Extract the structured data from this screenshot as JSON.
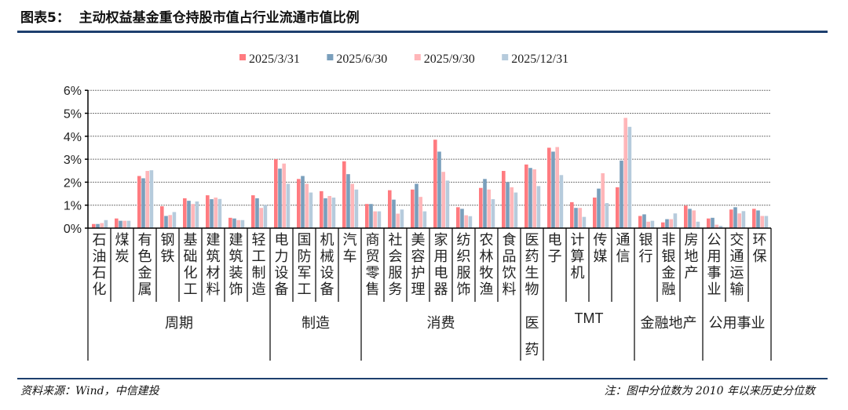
{
  "header": {
    "title": "图表5：  主动权益基金重仓持股市值占行业流通市值比例"
  },
  "footer": {
    "source": "资料来源：Wind，中信建投",
    "note": "注：图中分位数为 2010 年以来历史分位数"
  },
  "chart_data": {
    "type": "bar",
    "title": "主动权益基金重仓持股市值占行业流通市值比例",
    "ylabel": "",
    "xlabel": "",
    "ylim": [
      0,
      6
    ],
    "yticks": [
      "0%",
      "1%",
      "2%",
      "3%",
      "4%",
      "5%",
      "6%"
    ],
    "grid": true,
    "legend_position": "top",
    "colors": [
      "#ff7b80",
      "#7a9fbc",
      "#ffb6b9",
      "#b6cbdc"
    ],
    "categories": [
      "石油石化",
      "煤炭",
      "有色金属",
      "钢铁",
      "基础化工",
      "建筑材料",
      "建筑装饰",
      "轻工制造",
      "电力设备",
      "国防军工",
      "机械设备",
      "汽车",
      "商贸零售",
      "社会服务",
      "美容护理",
      "家用电器",
      "纺织服饰",
      "农林牧渔",
      "食品饮料",
      "医药生物",
      "电子",
      "计算机",
      "传媒",
      "通信",
      "银行",
      "非银金融",
      "房地产",
      "公用事业",
      "交通运输",
      "环保"
    ],
    "groups": [
      {
        "name": "周期",
        "start": 0,
        "end": 7
      },
      {
        "name": "制造",
        "start": 8,
        "end": 11
      },
      {
        "name": "消费",
        "start": 12,
        "end": 18
      },
      {
        "name": "医药",
        "start": 19,
        "end": 19
      },
      {
        "name": "TMT",
        "start": 20,
        "end": 23
      },
      {
        "name": "金融地产",
        "start": 24,
        "end": 26
      },
      {
        "name": "公用事业",
        "start": 27,
        "end": 29
      }
    ],
    "series": [
      {
        "name": "2025/3/31",
        "values": [
          0.18,
          0.42,
          2.27,
          0.95,
          1.3,
          1.43,
          0.45,
          1.43,
          3.0,
          2.14,
          1.61,
          2.91,
          1.05,
          1.65,
          1.68,
          3.85,
          0.91,
          1.75,
          2.49,
          2.77,
          3.5,
          1.13,
          1.33,
          1.78,
          0.53,
          0.25,
          0.98,
          0.42,
          0.81,
          0.84
        ]
      },
      {
        "name": "2025/6/30",
        "values": [
          0.18,
          0.32,
          2.17,
          0.53,
          1.19,
          1.26,
          0.42,
          1.3,
          2.59,
          2.27,
          1.3,
          2.35,
          1.05,
          1.24,
          1.93,
          3.33,
          0.84,
          2.14,
          2.0,
          2.62,
          3.33,
          0.88,
          1.72,
          2.94,
          0.6,
          0.39,
          0.84,
          0.45,
          0.91,
          0.77
        ]
      },
      {
        "name": "2025/9/30",
        "values": [
          0.22,
          0.32,
          2.49,
          0.57,
          1.05,
          1.33,
          0.35,
          0.88,
          2.81,
          1.93,
          1.4,
          1.93,
          0.73,
          0.63,
          1.36,
          2.45,
          0.56,
          1.68,
          1.78,
          2.56,
          3.53,
          0.88,
          2.39,
          4.8,
          0.28,
          0.39,
          0.77,
          0.15,
          0.64,
          0.53
        ]
      },
      {
        "name": "2025/12/31",
        "values": [
          0.35,
          0.32,
          2.52,
          0.7,
          1.16,
          1.27,
          0.35,
          1.01,
          1.93,
          1.55,
          1.33,
          1.68,
          0.73,
          0.81,
          0.73,
          2.07,
          0.52,
          1.26,
          1.55,
          1.83,
          2.31,
          0.49,
          1.09,
          4.41,
          0.32,
          0.64,
          0.28,
          0.1,
          0.74,
          0.53
        ]
      }
    ]
  }
}
